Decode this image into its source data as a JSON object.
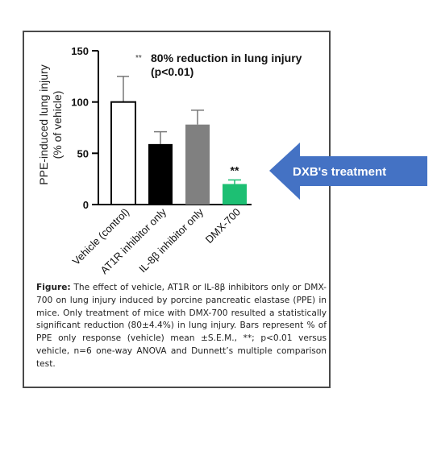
{
  "chart_data": {
    "type": "bar",
    "ylabel_line1": "PPE-induced lung injury",
    "ylabel_line2": "(% of vehicle)",
    "ylim": [
      0,
      150
    ],
    "yticks": [
      "150",
      "100",
      "50",
      "0"
    ],
    "categories": [
      "Vehicle (control)",
      "AT1R inhibitor only",
      "IL-8β inhibitor only",
      "DMX-700"
    ],
    "values": [
      100,
      59,
      78,
      20
    ],
    "errors": [
      25,
      12,
      14,
      4
    ],
    "bar_colors": [
      "#ffffff",
      "#000000",
      "#808080",
      "#1dbf73"
    ],
    "significance": [
      null,
      null,
      null,
      "**"
    ],
    "annotation": {
      "stars": "**",
      "line1": "80% reduction in lung injury",
      "line2": "(p<0.01)"
    }
  },
  "caption": {
    "label": "Figure:",
    "text": "The effect of vehicle, AT1R or IL-8β inhibitors only or DMX-700 on lung injury induced by porcine pancreatic elastase (PPE) in mice. Only treatment of mice with DMX-700 resulted a statistically significant reduction (80±4.4%) in lung injury. Bars represent % of PPE only response (vehicle) mean ±S.E.M., **; p<0.01 versus vehicle, n=6 one-way ANOVA and Dunnett’s multiple comparison test."
  },
  "callout": {
    "label": "DXB's treatment",
    "color": "#4472c4"
  }
}
